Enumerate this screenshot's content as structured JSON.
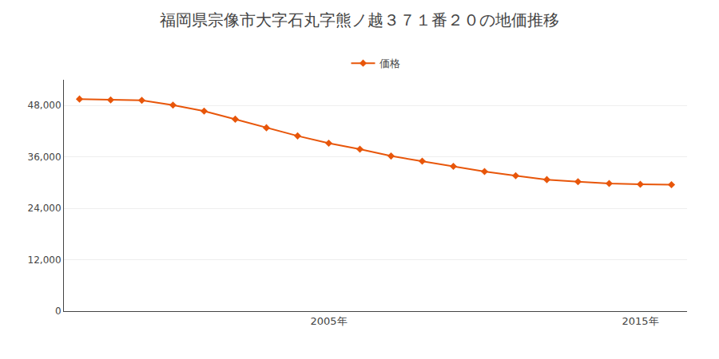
{
  "chart_data": {
    "type": "line",
    "title": "福岡県宗像市大字石丸字熊ノ越３７１番２０の地価推移",
    "x": [
      1997,
      1998,
      1999,
      2000,
      2001,
      2002,
      2003,
      2004,
      2005,
      2006,
      2007,
      2008,
      2009,
      2010,
      2011,
      2012,
      2013,
      2014,
      2015,
      2016
    ],
    "series": [
      {
        "name": "価格",
        "color": "#e8560a",
        "marker": "diamond",
        "values": [
          49500,
          49300,
          49200,
          48100,
          46700,
          44800,
          42800,
          40900,
          39200,
          37800,
          36200,
          35000,
          33800,
          32600,
          31600,
          30700,
          30200,
          29800,
          29600,
          29500
        ]
      }
    ],
    "xlim": [
      1996.5,
      2016.5
    ],
    "xticks": [
      {
        "value": 2005,
        "label": "2005年"
      },
      {
        "value": 2015,
        "label": "2015年"
      }
    ],
    "ylim": [
      0,
      54000
    ],
    "yticks": [
      0,
      {
        "value": 12000,
        "label": "12,000"
      },
      {
        "value": 24000,
        "label": "24,000"
      },
      {
        "value": 36000,
        "label": "36,000"
      },
      {
        "value": 48000,
        "label": "48,000"
      }
    ],
    "grid": true,
    "legend": "top"
  }
}
